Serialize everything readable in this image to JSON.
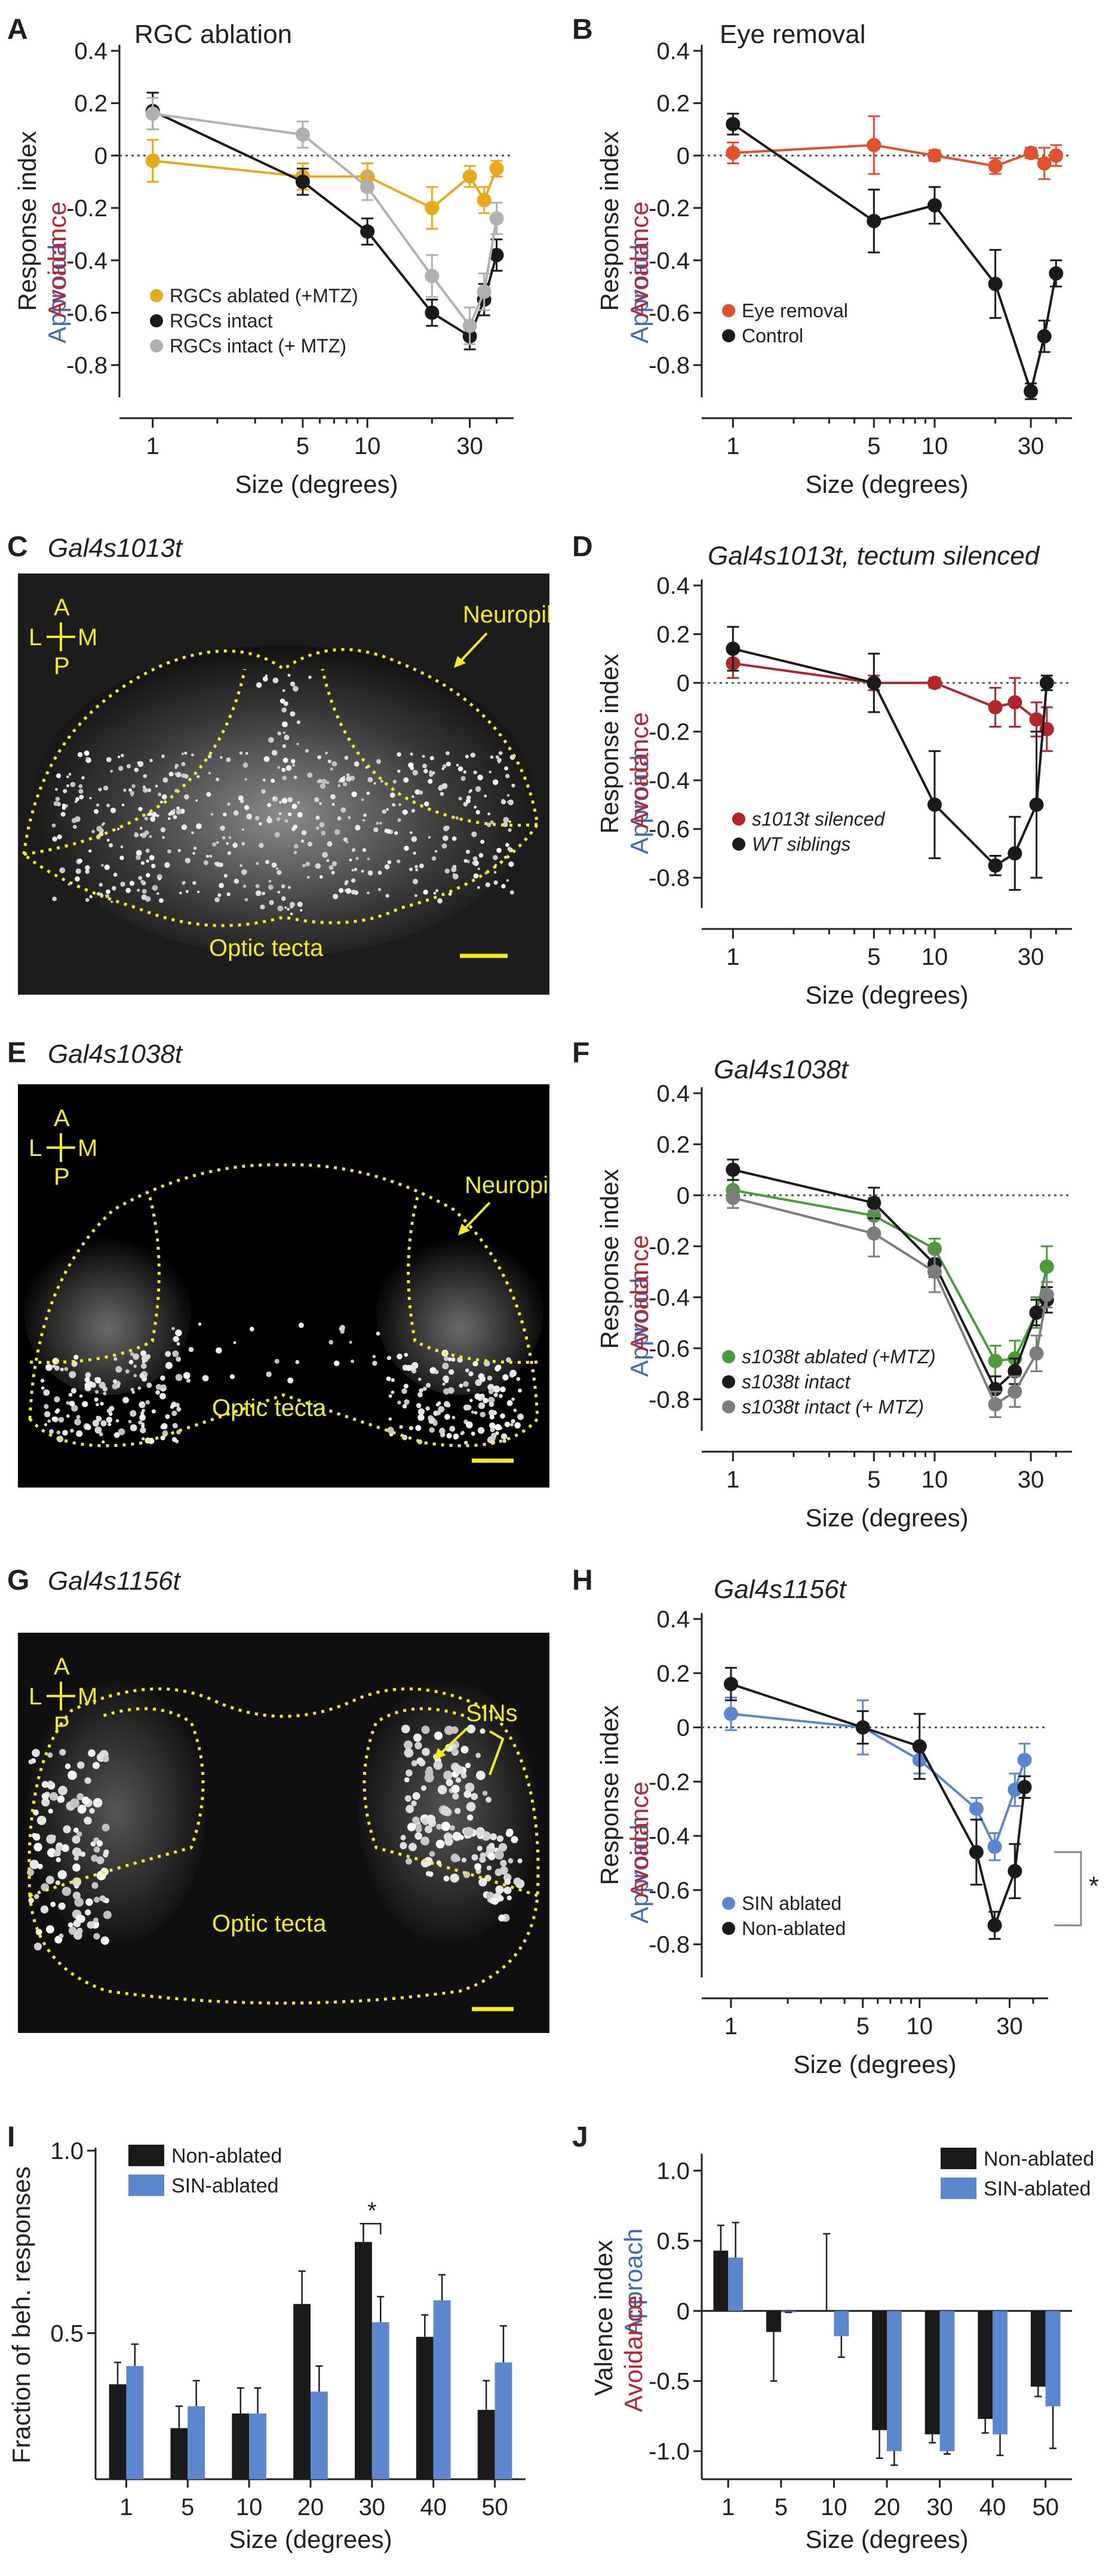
{
  "colors": {
    "black": "#1a1a1a",
    "orange": "#e8a91c",
    "grey": "#b0b0b0",
    "red_orange": "#e0512e",
    "dark_red": "#b2262b",
    "green": "#4a9b3a",
    "mid_grey": "#7d7d7d",
    "blue": "#5c86cd",
    "approach_blue": "#4169b5",
    "avoid_red": "#b7262f",
    "tecta_yellow": "#f5ec1f"
  },
  "panel_labels": {
    "A": "A",
    "B": "B",
    "C": "C",
    "D": "D",
    "E": "E",
    "F": "F",
    "G": "G",
    "H": "H",
    "I": "I",
    "J": "J"
  },
  "common": {
    "ylabel_black": "Response index",
    "ylabel_approach": "Approach",
    "ylabel_avoid": "Avoidance",
    "xlabel": "Size (degrees)",
    "x_ticks": [
      "1",
      "5",
      "10",
      "30"
    ],
    "sig_star": "*"
  },
  "micrographs": {
    "C": {
      "title": "Gal4s1013t",
      "axis_A": "A",
      "axis_L": "L",
      "axis_M": "M",
      "axis_P": "P",
      "neuropil": "Neuropil",
      "tecta": "Optic tecta"
    },
    "E": {
      "title": "Gal4s1038t",
      "axis_A": "A",
      "axis_L": "L",
      "axis_M": "M",
      "axis_P": "P",
      "neuropil": "Neuropil",
      "tecta": "Optic tecta"
    },
    "G": {
      "title": "Gal4s1156t",
      "axis_A": "A",
      "axis_L": "L",
      "axis_M": "M",
      "axis_P": "P",
      "sins": "SINs",
      "tecta": "Optic tecta"
    }
  },
  "chart_data": [
    {
      "panel": "A",
      "type": "line",
      "title": "RGC ablation",
      "xlabel": "Size (degrees)",
      "ylabel": "Response index",
      "x_scale": "log",
      "x_ticks": [
        "1",
        "5",
        "10",
        "30"
      ],
      "y_ticks": [
        "0.4",
        "0.2",
        "0",
        "-0.2",
        "-0.4",
        "-0.6",
        "-0.8"
      ],
      "ylim": [
        -0.9,
        0.4
      ],
      "legend": "bottom-left",
      "series": [
        {
          "name": "RGCs ablated (+MTZ)",
          "color": "#e8a91c",
          "x": [
            1,
            5,
            10,
            20,
            30,
            35,
            40
          ],
          "y": [
            -0.02,
            -0.08,
            -0.08,
            -0.2,
            -0.08,
            -0.17,
            -0.05
          ],
          "err": [
            0.08,
            0.05,
            0.05,
            0.08,
            0.04,
            0.05,
            0.03
          ]
        },
        {
          "name": "RGCs intact",
          "color": "#1a1a1a",
          "x": [
            1,
            5,
            10,
            20,
            30,
            35,
            40
          ],
          "y": [
            0.17,
            -0.1,
            -0.29,
            -0.6,
            -0.69,
            -0.55,
            -0.38
          ],
          "err": [
            0.07,
            0.05,
            0.05,
            0.05,
            0.05,
            0.06,
            0.06
          ]
        },
        {
          "name": "RGCs intact (+ MTZ)",
          "color": "#b0b0b0",
          "x": [
            1,
            5,
            10,
            20,
            30,
            35,
            40
          ],
          "y": [
            0.16,
            0.08,
            -0.12,
            -0.46,
            -0.65,
            -0.52,
            -0.24
          ],
          "err": [
            0.06,
            0.05,
            0.05,
            0.08,
            0.07,
            0.07,
            0.06
          ]
        }
      ]
    },
    {
      "panel": "B",
      "type": "line",
      "title": "Eye removal",
      "xlabel": "Size (degrees)",
      "ylabel": "Response index",
      "x_scale": "log",
      "x_ticks": [
        "1",
        "5",
        "10",
        "30"
      ],
      "y_ticks": [
        "0.4",
        "0.2",
        "0",
        "-0.2",
        "-0.4",
        "-0.6",
        "-0.8"
      ],
      "ylim": [
        -0.9,
        0.4
      ],
      "legend": "bottom-left",
      "series": [
        {
          "name": "Eye removal",
          "color": "#e0512e",
          "x": [
            1,
            5,
            10,
            20,
            30,
            35,
            40
          ],
          "y": [
            0.01,
            0.04,
            0.0,
            -0.04,
            0.01,
            -0.03,
            0.0
          ],
          "err": [
            0.04,
            0.11,
            0.02,
            0.03,
            0.02,
            0.06,
            0.04
          ]
        },
        {
          "name": "Control",
          "color": "#1a1a1a",
          "x": [
            1,
            5,
            10,
            20,
            30,
            35,
            40
          ],
          "y": [
            0.12,
            -0.25,
            -0.19,
            -0.49,
            -0.9,
            -0.69,
            -0.45
          ],
          "err": [
            0.04,
            0.12,
            0.07,
            0.13,
            0.03,
            0.06,
            0.05
          ]
        }
      ]
    },
    {
      "panel": "D",
      "type": "line",
      "title": "Gal4s1013t, tectum silenced",
      "xlabel": "Size (degrees)",
      "ylabel": "Response index",
      "x_scale": "log",
      "x_ticks": [
        "1",
        "5",
        "10",
        "30"
      ],
      "y_ticks": [
        "0.4",
        "0.2",
        "0",
        "-0.2",
        "-0.4",
        "-0.6",
        "-0.8"
      ],
      "ylim": [
        -0.9,
        0.4
      ],
      "legend": "bottom-left",
      "series": [
        {
          "name": "s1013t silenced",
          "color": "#b2262b",
          "x": [
            1,
            5,
            10,
            20,
            25,
            32,
            36
          ],
          "y": [
            0.08,
            0.0,
            0.0,
            -0.1,
            -0.08,
            -0.15,
            -0.19
          ],
          "err": [
            0.06,
            0.03,
            0.02,
            0.08,
            0.1,
            0.07,
            0.09
          ]
        },
        {
          "name": "WT siblings",
          "color": "#1a1a1a",
          "x": [
            1,
            5,
            10,
            20,
            25,
            32,
            36
          ],
          "y": [
            0.14,
            0.0,
            -0.5,
            -0.75,
            -0.7,
            -0.5,
            0.0
          ],
          "err": [
            0.09,
            0.12,
            0.22,
            0.04,
            0.15,
            0.3,
            0.03
          ]
        }
      ]
    },
    {
      "panel": "F",
      "type": "line",
      "title": "Gal4s1038t",
      "xlabel": "Size (degrees)",
      "ylabel": "Response index",
      "x_scale": "log",
      "x_ticks": [
        "1",
        "5",
        "10",
        "30"
      ],
      "y_ticks": [
        "0.4",
        "0.2",
        "0",
        "-0.2",
        "-0.4",
        "-0.6",
        "-0.8"
      ],
      "ylim": [
        -0.9,
        0.4
      ],
      "legend": "bottom-left",
      "series": [
        {
          "name": "s1038t ablated (+MTZ)",
          "color": "#4a9b3a",
          "x": [
            1,
            5,
            10,
            20,
            25,
            32,
            36
          ],
          "y": [
            0.02,
            -0.08,
            -0.21,
            -0.65,
            -0.64,
            -0.46,
            -0.28
          ],
          "err": [
            0.04,
            0.07,
            0.04,
            0.06,
            0.07,
            0.06,
            0.08
          ]
        },
        {
          "name": "s1038t intact",
          "color": "#1a1a1a",
          "x": [
            1,
            5,
            10,
            20,
            25,
            32,
            36
          ],
          "y": [
            0.1,
            -0.03,
            -0.27,
            -0.76,
            -0.69,
            -0.46,
            -0.41
          ],
          "err": [
            0.04,
            0.06,
            0.05,
            0.05,
            0.05,
            0.05,
            0.05
          ]
        },
        {
          "name": "s1038t intact (+ MTZ)",
          "color": "#7d7d7d",
          "x": [
            1,
            5,
            10,
            20,
            25,
            32,
            36
          ],
          "y": [
            -0.01,
            -0.15,
            -0.3,
            -0.82,
            -0.77,
            -0.62,
            -0.39
          ],
          "err": [
            0.04,
            0.09,
            0.08,
            0.05,
            0.06,
            0.07,
            0.05
          ]
        }
      ]
    },
    {
      "panel": "H",
      "type": "line",
      "title": "Gal4s1156t",
      "xlabel": "Size (degrees)",
      "ylabel": "Response index",
      "x_scale": "log",
      "x_ticks": [
        "1",
        "5",
        "10",
        "30"
      ],
      "y_ticks": [
        "0.4",
        "0.2",
        "0",
        "-0.2",
        "-0.4",
        "-0.6",
        "-0.8"
      ],
      "ylim": [
        -0.9,
        0.4
      ],
      "legend": "bottom-left",
      "annotation": "*",
      "series": [
        {
          "name": "SIN ablated",
          "color": "#5c86cd",
          "x": [
            1,
            5,
            10,
            20,
            25,
            32,
            36
          ],
          "y": [
            0.05,
            0.0,
            -0.12,
            -0.3,
            -0.44,
            -0.23,
            -0.12
          ],
          "err": [
            0.06,
            0.1,
            0.05,
            0.04,
            0.05,
            0.06,
            0.06
          ]
        },
        {
          "name": "Non-ablated",
          "color": "#1a1a1a",
          "x": [
            1,
            5,
            10,
            20,
            25,
            32,
            36
          ],
          "y": [
            0.16,
            0.0,
            -0.07,
            -0.46,
            -0.73,
            -0.53,
            -0.22
          ],
          "err": [
            0.06,
            0.06,
            0.12,
            0.12,
            0.05,
            0.1,
            0.04
          ]
        }
      ]
    },
    {
      "panel": "I",
      "type": "bar",
      "xlabel": "Size (degrees)",
      "ylabel": "Fraction of beh. responses",
      "categories": [
        "1",
        "5",
        "10",
        "20",
        "30",
        "40",
        "50"
      ],
      "y_ticks": [
        "1.0",
        "0.5"
      ],
      "ylim": [
        0.1,
        1.0
      ],
      "legend": "top-left",
      "annotation": "*",
      "series": [
        {
          "name": "Non-ablated",
          "color": "#1a1a1a",
          "values": [
            0.36,
            0.24,
            0.28,
            0.58,
            0.75,
            0.49,
            0.29
          ],
          "err": [
            0.06,
            0.06,
            0.07,
            0.09,
            0.05,
            0.06,
            0.08
          ]
        },
        {
          "name": "SIN-ablated",
          "color": "#5c86cd",
          "values": [
            0.41,
            0.3,
            0.28,
            0.34,
            0.53,
            0.59,
            0.42
          ],
          "err": [
            0.06,
            0.07,
            0.07,
            0.07,
            0.07,
            0.07,
            0.1
          ]
        }
      ]
    },
    {
      "panel": "J",
      "type": "bar",
      "xlabel": "Size (degrees)",
      "ylabel": "Valence index",
      "categories": [
        "1",
        "5",
        "10",
        "20",
        "30",
        "40",
        "50"
      ],
      "y_ticks": [
        "1.0",
        "0.5",
        "0",
        "-0.5",
        "-1.0"
      ],
      "ylim": [
        -1.2,
        1.1
      ],
      "legend": "top-right",
      "series": [
        {
          "name": "Non-ablated",
          "color": "#1a1a1a",
          "values": [
            0.43,
            -0.15,
            0.0,
            -0.85,
            -0.88,
            -0.77,
            -0.54
          ],
          "err": [
            0.18,
            0.35,
            0.55,
            0.2,
            0.06,
            0.1,
            0.07
          ]
        },
        {
          "name": "SIN-ablated",
          "color": "#5c86cd",
          "values": [
            0.38,
            -0.01,
            -0.18,
            -1.0,
            -1.0,
            -0.88,
            -0.68
          ],
          "err": [
            0.25,
            0.0,
            0.15,
            0.1,
            0.02,
            0.15,
            0.3
          ]
        }
      ]
    }
  ]
}
